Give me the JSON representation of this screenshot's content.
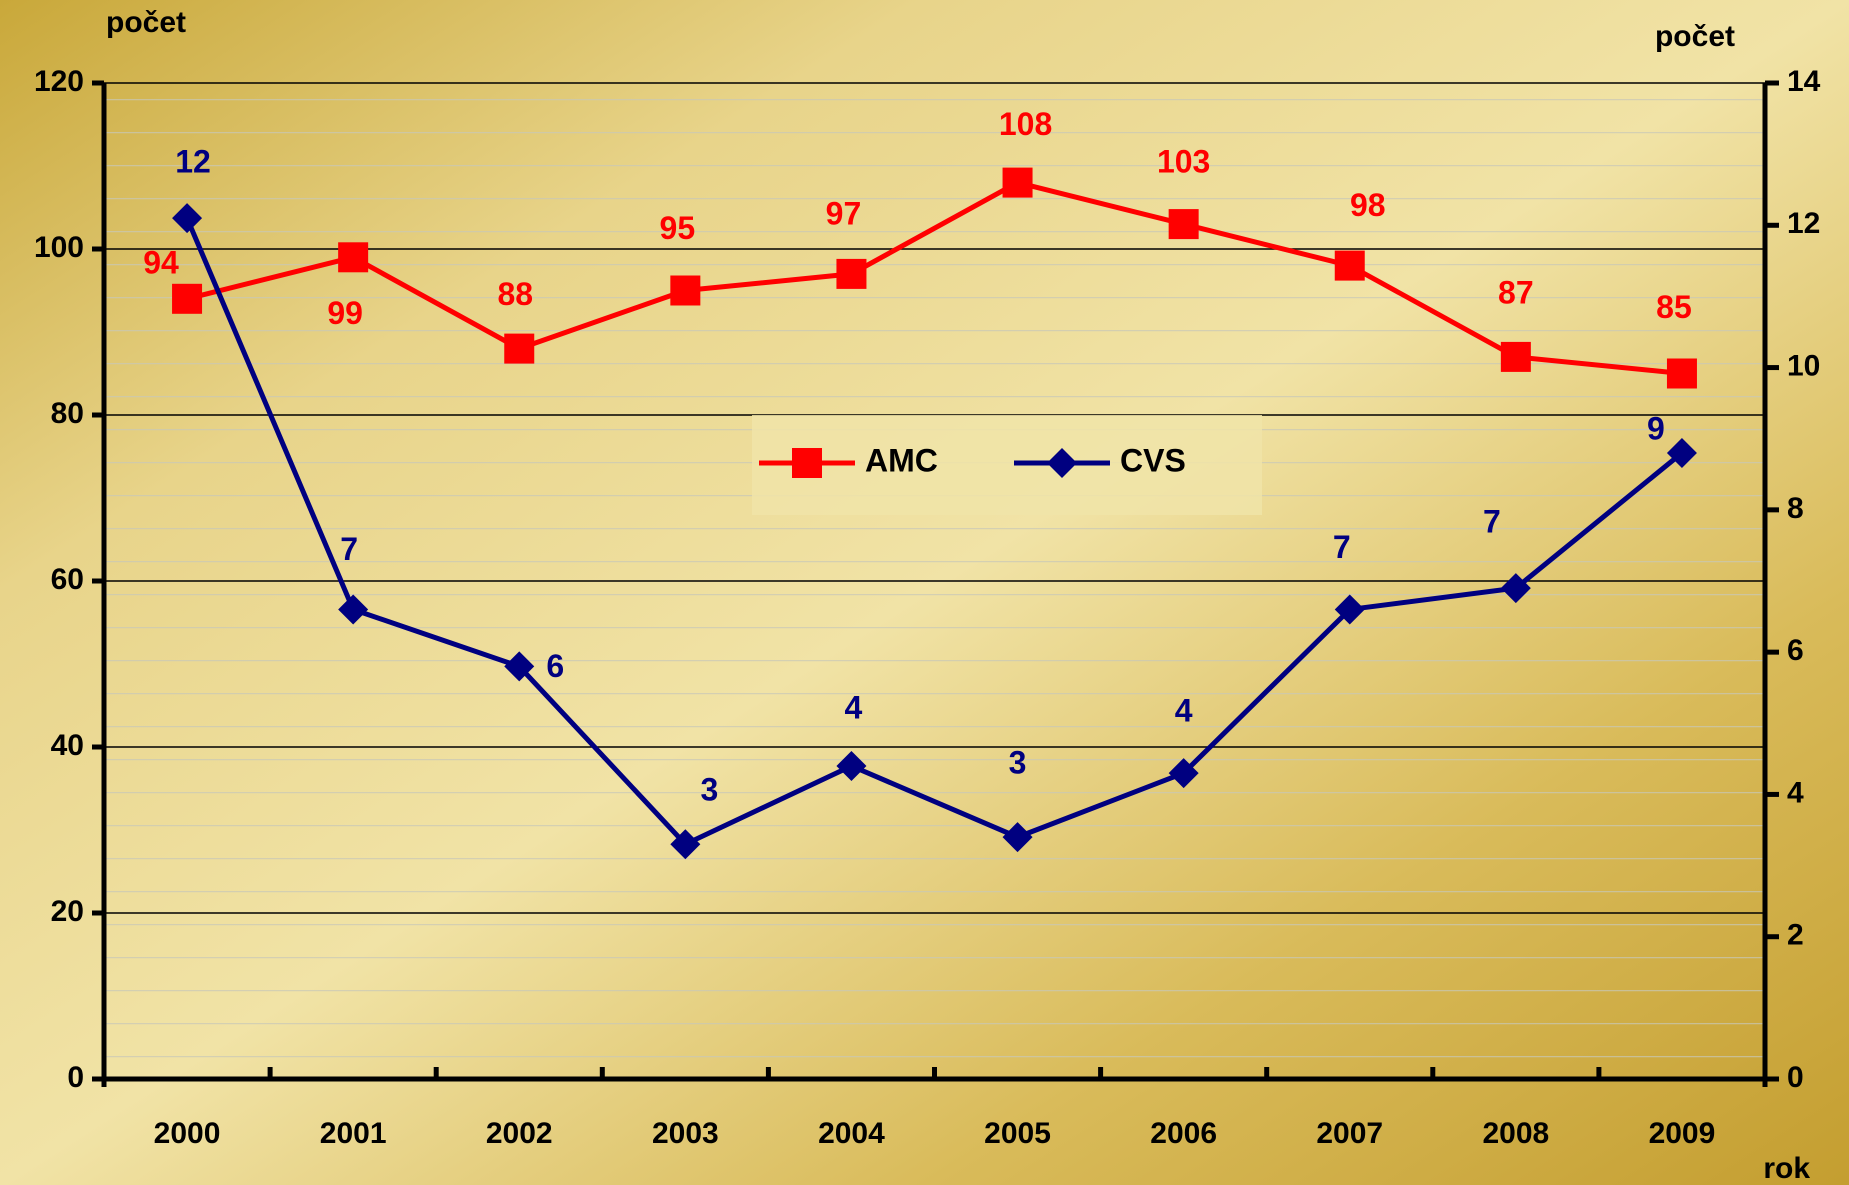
{
  "chart_data": {
    "type": "line",
    "y_label": "počet",
    "y2_label": "počet",
    "x_label": "rok",
    "categories": [
      "2000",
      "2001",
      "2002",
      "2003",
      "2004",
      "2005",
      "2006",
      "2007",
      "2008",
      "2009"
    ],
    "series": [
      {
        "name": "AMC",
        "color": "#ff0000",
        "values": [
          94,
          99,
          88,
          95,
          97,
          108,
          103,
          98,
          87,
          85
        ]
      },
      {
        "name": "CVS",
        "color": "#000080",
        "axis": "y2",
        "values": [
          12.1,
          6.6,
          5.8,
          3.3,
          4.4,
          3.4,
          4.3,
          6.6,
          6.9,
          8.8
        ],
        "value_labels": [
          "12",
          "7",
          "6",
          "3",
          "4",
          "3",
          "4",
          "7",
          "7",
          "9"
        ]
      }
    ],
    "ylim": [
      0,
      120
    ],
    "yticks": [
      0,
      20,
      40,
      60,
      80,
      100,
      120
    ],
    "y2lim": [
      0,
      14
    ],
    "y2ticks": [
      0,
      2,
      4,
      6,
      8,
      10,
      12,
      14
    ],
    "grid": true,
    "legend": "center"
  }
}
